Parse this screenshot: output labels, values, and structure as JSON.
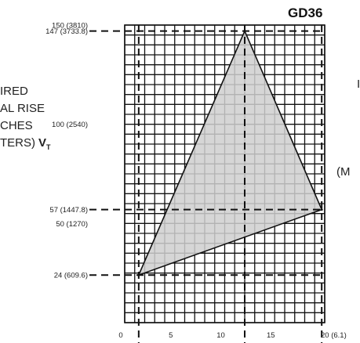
{
  "chart_data": {
    "type": "area",
    "title": "GD36",
    "left_label_lines": [
      "IRED",
      "AL RISE",
      "CHES",
      "TERS)"
    ],
    "left_label_symbol": "V",
    "left_label_subscript": "T",
    "right_label_top": "I",
    "right_label_mid": "(M",
    "xlim": [
      0,
      20
    ],
    "ylim": [
      0,
      150
    ],
    "x_tick_labels": [
      {
        "x": 0,
        "label": "0"
      },
      {
        "x": 5,
        "label": "5"
      },
      {
        "x": 10,
        "label": "10"
      },
      {
        "x": 15,
        "label": "15"
      },
      {
        "x": 20,
        "label": "20 (6.1)"
      }
    ],
    "y_tick_labels": [
      {
        "y": 24,
        "label": "24 (609.6)"
      },
      {
        "y": 50,
        "label": "50 (1270)"
      },
      {
        "y": 57,
        "label": "57 (1447.8)"
      },
      {
        "y": 100,
        "label": "100 (2540)"
      },
      {
        "y": 147,
        "label": "147 (3733.8)"
      },
      {
        "y": 150,
        "label": "150 (3810)"
      }
    ],
    "region": {
      "fill": "#cfcfcf",
      "points": [
        {
          "x": 1.4,
          "y": 24
        },
        {
          "x": 12,
          "y": 147
        },
        {
          "x": 19.7,
          "y": 57
        }
      ]
    },
    "reference_lines": {
      "horizontal_y": [
        147,
        57,
        24
      ],
      "vertical_x": [
        1.4,
        12,
        19.7
      ]
    },
    "grid": true
  }
}
